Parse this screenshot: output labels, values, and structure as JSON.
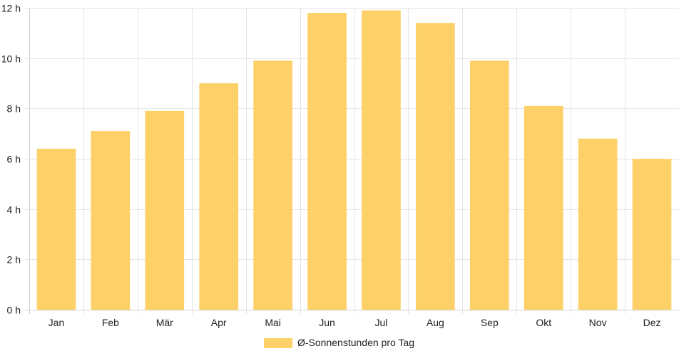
{
  "chart_data": {
    "type": "bar",
    "categories": [
      "Jan",
      "Feb",
      "Mär",
      "Apr",
      "Mai",
      "Jun",
      "Jul",
      "Aug",
      "Sep",
      "Okt",
      "Nov",
      "Dez"
    ],
    "series": [
      {
        "name": "Ø-Sonnenstunden pro Tag",
        "values": [
          6.4,
          7.1,
          7.9,
          9.0,
          9.9,
          11.8,
          11.9,
          11.4,
          9.9,
          8.1,
          6.8,
          6.0
        ],
        "color": "#fdd068"
      }
    ],
    "y_ticks": [
      "0 h",
      "2 h",
      "4 h",
      "6 h",
      "8 h",
      "10 h",
      "12 h"
    ],
    "ylim": [
      0,
      12
    ],
    "grid": true,
    "legend_position": "bottom"
  }
}
